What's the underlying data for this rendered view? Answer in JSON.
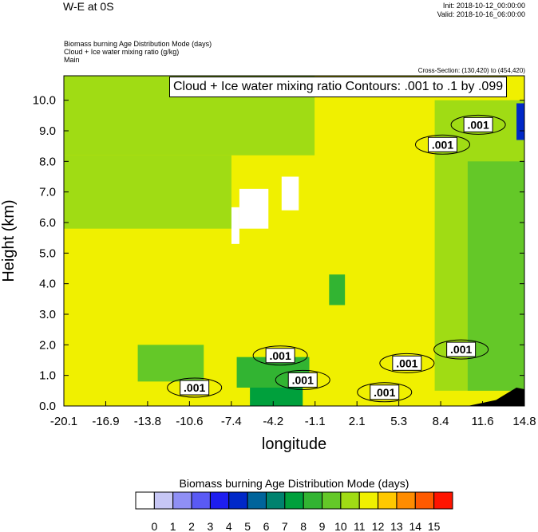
{
  "header": {
    "main_title": "W-E at 0S",
    "init": "Init: 2018-10-12_00:00:00",
    "valid": "Valid: 2018-10-16_06:00:00",
    "desc1": "Biomass burning Age Distribution Mode   (days)",
    "desc2": "Cloud + Ice water mixing ratio   (g/kg)",
    "desc3": "Main",
    "cross_section": "Cross-Section: (130,420) to (454,420)",
    "contour_info": "Cloud + Ice water mixing ratio Contours: .001 to .1 by .099"
  },
  "chart_data": {
    "type": "heatmap",
    "xlabel": "longitude",
    "ylabel": "Height (km)",
    "xlim": [
      -20.1,
      14.8
    ],
    "ylim": [
      0.0,
      10.8
    ],
    "x_ticks": [
      "-20.1",
      "-16.9",
      "-13.8",
      "-10.6",
      "-7.4",
      "-4.2",
      "-1.1",
      "2.1",
      "5.3",
      "8.4",
      "11.6",
      "14.8"
    ],
    "y_ticks": [
      "0.0",
      "1.0",
      "2.0",
      "3.0",
      "4.0",
      "5.0",
      "6.0",
      "7.0",
      "8.0",
      "9.0",
      "10.0"
    ],
    "colorbar": {
      "title": "Biomass burning Age Distribution Mode  (days)",
      "labels": [
        "0",
        "1",
        "2",
        "3",
        "4",
        "5",
        "6",
        "7",
        "8",
        "9",
        "10",
        "11",
        "12",
        "13",
        "14",
        "15"
      ],
      "colors": [
        "#ffffff",
        "#c7c7f5",
        "#8f8ff5",
        "#5a5af5",
        "#1e1ef0",
        "#0028c8",
        "#00649b",
        "#00826e",
        "#00a03c",
        "#32b432",
        "#64c828",
        "#a0dc14",
        "#f0f000",
        "#ffc800",
        "#ff8c00",
        "#ff5a00",
        "#ff1400"
      ]
    },
    "regions": [
      {
        "name": "background",
        "level": 11.5,
        "x": [
          -20.1,
          14.8
        ],
        "y": [
          0.0,
          10.8
        ]
      },
      {
        "name": "upper-left-band",
        "level": 10.5,
        "x": [
          -20.1,
          -1.1
        ],
        "y": [
          8.2,
          10.8
        ]
      },
      {
        "name": "upper-left-wedge",
        "level": 10.5,
        "x": [
          -20.1,
          -7.4
        ],
        "y": [
          5.8,
          8.2
        ]
      },
      {
        "name": "east-column",
        "level": 10.5,
        "x": [
          8.0,
          14.8
        ],
        "y": [
          0.5,
          10.0
        ]
      },
      {
        "name": "east-inner",
        "level": 9.5,
        "x": [
          10.5,
          14.8
        ],
        "y": [
          0.5,
          8.0
        ]
      },
      {
        "name": "east-top-blue",
        "level": 4.5,
        "x": [
          14.2,
          14.8
        ],
        "y": [
          8.7,
          9.9
        ]
      },
      {
        "name": "mid-blob",
        "level": 8.5,
        "x": [
          0.0,
          1.2
        ],
        "y": [
          3.3,
          4.3
        ]
      },
      {
        "name": "low-layer-west",
        "level": 9.5,
        "x": [
          -14.5,
          -9.5
        ],
        "y": [
          0.8,
          2.0
        ]
      },
      {
        "name": "low-layer-center",
        "level": 8.5,
        "x": [
          -7.0,
          -1.5
        ],
        "y": [
          0.6,
          1.6
        ]
      },
      {
        "name": "surface-core",
        "level": 7.5,
        "x": [
          -6.0,
          -2.0
        ],
        "y": [
          0.0,
          0.6
        ]
      },
      {
        "name": "gap-1",
        "level": 0,
        "x": [
          -7.4,
          -6.8
        ],
        "y": [
          5.3,
          6.5
        ]
      },
      {
        "name": "gap-2",
        "level": 0,
        "x": [
          -6.8,
          -4.6
        ],
        "y": [
          5.8,
          7.1
        ]
      },
      {
        "name": "gap-3",
        "level": 0,
        "x": [
          -3.6,
          -2.3
        ],
        "y": [
          6.4,
          7.5
        ]
      }
    ],
    "terrain": {
      "x": [
        10.5,
        14.8
      ],
      "y_max": 0.6
    },
    "contour_labels": [
      {
        "text": ".001",
        "x": -10.2,
        "y": 0.6
      },
      {
        "text": ".001",
        "x": -3.7,
        "y": 1.65
      },
      {
        "text": ".001",
        "x": -2.0,
        "y": 0.85
      },
      {
        "text": ".001",
        "x": 4.2,
        "y": 0.45
      },
      {
        "text": ".001",
        "x": 5.9,
        "y": 1.4
      },
      {
        "text": ".001",
        "x": 10.0,
        "y": 1.85
      },
      {
        "text": ".001",
        "x": 8.6,
        "y": 8.55
      },
      {
        "text": ".001",
        "x": 11.3,
        "y": 9.2
      }
    ]
  }
}
